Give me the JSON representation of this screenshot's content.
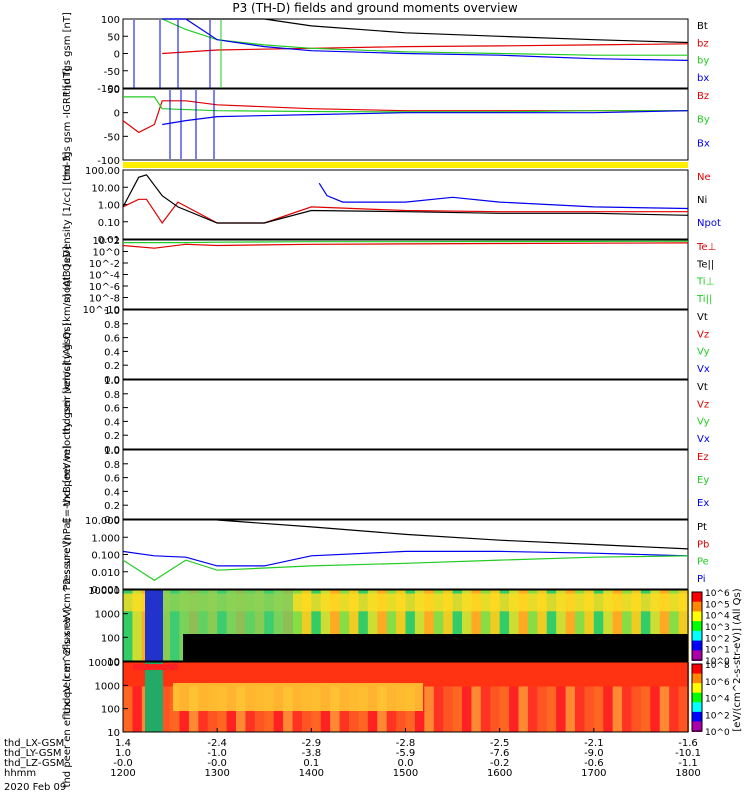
{
  "title": "P3 (TH-D) fields and ground moments overview",
  "colors": {
    "black": "#000000",
    "red": "#e00000",
    "green": "#22cc22",
    "blue": "#0000ee",
    "yellow": "#ffee00"
  },
  "chart_data": [
    {
      "type": "line",
      "ylabel": "thd fgs gsm [nT]",
      "yticks": [
        "100",
        "50",
        "0",
        "-50",
        "-100"
      ],
      "legend": [
        {
          "label": "Bt",
          "color": "black"
        },
        {
          "label": "bz",
          "color": "red"
        },
        {
          "label": "by",
          "color": "green"
        },
        {
          "label": "bx",
          "color": "blue"
        }
      ],
      "series": [
        {
          "name": "Bt",
          "x": [
            1225,
            1240,
            1300,
            1330,
            1400,
            1500,
            1600,
            1700,
            1800
          ],
          "y": [
            100,
            100,
            100,
            100,
            80,
            60,
            50,
            40,
            32
          ]
        },
        {
          "name": "bz",
          "x": [
            1225,
            1300,
            1400,
            1500,
            1600,
            1700,
            1800
          ],
          "y": [
            0,
            10,
            15,
            20,
            22,
            25,
            28
          ]
        },
        {
          "name": "by",
          "x": [
            1225,
            1240,
            1300,
            1330,
            1400,
            1500,
            1600,
            1700,
            1800
          ],
          "y": [
            100,
            70,
            40,
            25,
            15,
            5,
            0,
            -5,
            -5
          ]
        },
        {
          "name": "bx",
          "x": [
            1225,
            1240,
            1300,
            1330,
            1400,
            1500,
            1600,
            1700,
            1800
          ],
          "y": [
            100,
            100,
            40,
            20,
            8,
            0,
            -5,
            -15,
            -20
          ]
        }
      ]
    },
    {
      "type": "line",
      "ylabel": "thd fgs gsm -IGRF [nT]",
      "yticks": [
        "50",
        "0",
        "-50",
        "-100"
      ],
      "legend": [
        {
          "label": "Bz",
          "color": "red"
        },
        {
          "label": "By",
          "color": "green"
        },
        {
          "label": "Bx",
          "color": "blue"
        }
      ],
      "series": [
        {
          "name": "Bz",
          "x": [
            1200,
            1210,
            1220,
            1225,
            1240,
            1300,
            1400,
            1500,
            1600,
            1700,
            1800
          ],
          "y": [
            -20,
            -50,
            -30,
            30,
            30,
            20,
            10,
            5,
            5,
            5,
            5
          ]
        },
        {
          "name": "By",
          "x": [
            1200,
            1220,
            1225,
            1300,
            1400,
            1500,
            1600,
            1700,
            1800
          ],
          "y": [
            40,
            40,
            10,
            5,
            3,
            2,
            2,
            5,
            5
          ]
        },
        {
          "name": "Bx",
          "x": [
            1225,
            1240,
            1300,
            1400,
            1500,
            1600,
            1700,
            1800
          ],
          "y": [
            -30,
            -20,
            -10,
            -5,
            0,
            0,
            0,
            5
          ]
        }
      ]
    },
    {
      "type": "line",
      "ylabel": "Density [1/cc] [cm-3]",
      "yscale": "log",
      "yticks": [
        "100.00",
        "10.00",
        "1.00",
        "0.10",
        "0.01"
      ],
      "legend": [
        {
          "label": "Ne",
          "color": "red"
        },
        {
          "label": "Ni",
          "color": "black"
        },
        {
          "label": "Npot",
          "color": "blue"
        }
      ],
      "series": [
        {
          "name": "Ne",
          "x": [
            1200,
            1210,
            1215,
            1225,
            1235,
            1300,
            1330,
            1400,
            1500,
            1600,
            1700,
            1800
          ],
          "y": [
            1,
            3,
            3,
            0.1,
            2,
            0.1,
            0.1,
            1,
            0.6,
            0.5,
            0.5,
            0.5
          ]
        },
        {
          "name": "Ni",
          "x": [
            1200,
            1210,
            1215,
            1225,
            1235,
            1300,
            1330,
            1400,
            1500,
            1600,
            1700,
            1800
          ],
          "y": [
            1,
            70,
            100,
            5,
            1,
            0.1,
            0.1,
            0.6,
            0.5,
            0.4,
            0.4,
            0.3
          ]
        },
        {
          "name": "Npot",
          "x": [
            1405,
            1410,
            1420,
            1500,
            1530,
            1600,
            1700,
            1800
          ],
          "y": [
            30,
            5,
            2,
            2,
            4,
            2,
            1,
            0.8
          ]
        }
      ]
    },
    {
      "type": "line",
      "ylabel": "moqt3 [eV]",
      "yscale": "log",
      "yticks": [
        "10^2",
        "10^0",
        "10^-2",
        "10^-4",
        "10^-6",
        "10^-8",
        "10^-10"
      ],
      "legend": [
        {
          "label": "Te⊥",
          "color": "red"
        },
        {
          "label": "Te||",
          "color": "black"
        },
        {
          "label": "Ti⊥",
          "color": "green"
        },
        {
          "label": "Ti||",
          "color": "green"
        }
      ],
      "series": [
        {
          "name": "Te⊥",
          "x": [
            1200,
            1220,
            1240,
            1300,
            1400,
            1500,
            1600,
            1700,
            1800
          ],
          "y": [
            30,
            10,
            50,
            30,
            50,
            60,
            70,
            80,
            90
          ]
        },
        {
          "name": "Ti⊥",
          "x": [
            1200,
            1220,
            1240,
            1300,
            1400,
            1500,
            1600,
            1700,
            1800
          ],
          "y": [
            100,
            100,
            100,
            120,
            150,
            150,
            160,
            170,
            180
          ]
        }
      ]
    },
    {
      "type": "line",
      "ylabel": "thd peir velocity gsm [km/s] (All Qs)",
      "yticks": [
        "1.0",
        "0.8",
        "0.6",
        "0.4",
        "0.2",
        "0.0"
      ],
      "legend": [
        {
          "label": "Vt",
          "color": "black"
        },
        {
          "label": "Vz",
          "color": "red"
        },
        {
          "label": "Vy",
          "color": "green"
        },
        {
          "label": "Vx",
          "color": "blue"
        }
      ],
      "series": []
    },
    {
      "type": "line",
      "ylabel": "thd peer velocity gsm [km/s] (All Qs)",
      "yticks": [
        "1.0",
        "0.8",
        "0.6",
        "0.4",
        "0.2",
        "0.0"
      ],
      "legend": [
        {
          "label": "Vt",
          "color": "black"
        },
        {
          "label": "Vz",
          "color": "red"
        },
        {
          "label": "Vy",
          "color": "green"
        },
        {
          "label": "Vx",
          "color": "blue"
        }
      ],
      "series": []
    },
    {
      "type": "line",
      "ylabel": "E=-VxB [mV/m]",
      "yticks": [
        "1.0",
        "0.8",
        "0.6",
        "0.4",
        "0.2",
        "0.0"
      ],
      "legend": [
        {
          "label": "Ez",
          "color": "red"
        },
        {
          "label": "Ey",
          "color": "green"
        },
        {
          "label": "Ex",
          "color": "blue"
        }
      ],
      "series": []
    },
    {
      "type": "line",
      "ylabel": "Pressure [nPa]",
      "yscale": "log",
      "yticks": [
        "10.000",
        "1.000",
        "0.100",
        "0.010",
        "0.001"
      ],
      "legend": [
        {
          "label": "Pt",
          "color": "black"
        },
        {
          "label": "Pb",
          "color": "red"
        },
        {
          "label": "Pe",
          "color": "green"
        },
        {
          "label": "Pi",
          "color": "blue"
        }
      ],
      "series": [
        {
          "name": "Pt",
          "x": [
            1300,
            1400,
            1500,
            1600,
            1700,
            1800
          ],
          "y": [
            30,
            10,
            3,
            1.2,
            0.6,
            0.3
          ]
        },
        {
          "name": "Pi",
          "x": [
            1200,
            1220,
            1240,
            1300,
            1330,
            1400,
            1500,
            1600,
            1700,
            1800
          ],
          "y": [
            0.2,
            0.1,
            0.08,
            0.02,
            0.02,
            0.1,
            0.2,
            0.2,
            0.15,
            0.1
          ]
        },
        {
          "name": "Pe",
          "x": [
            1200,
            1220,
            1240,
            1300,
            1400,
            1500,
            1600,
            1700,
            1800
          ],
          "y": [
            0.05,
            0.002,
            0.05,
            0.01,
            0.02,
            0.03,
            0.05,
            0.08,
            0.1
          ]
        }
      ]
    },
    {
      "type": "heatmap",
      "ylabel": "thd peir en eflux eV (cm^2-s-sr-eV)",
      "yticks": [
        "10000",
        "1000",
        "100",
        "10"
      ],
      "colorbar": [
        "10^6",
        "10^5",
        "10^4",
        "10^3",
        "10^2",
        "10^1",
        "10^0"
      ]
    },
    {
      "type": "heatmap",
      "ylabel": "thd peer en eflux eV (cm^2-s-sr-eV)",
      "yticks": [
        "10000",
        "1000",
        "100",
        "10"
      ],
      "colorbar": [
        "10^8",
        "10^6",
        "10^4",
        "10^2",
        "10^0"
      ]
    }
  ],
  "colorbar_label": "[eV/(cm^2-s-str-eV)] (All Qs)",
  "xaxis": {
    "rows": [
      {
        "label": "thd_LX-GSM",
        "values": [
          "1.4",
          "-2.4",
          "-2.9",
          "-2.8",
          "-2.5",
          "-2.1",
          "-1.6"
        ]
      },
      {
        "label": "thd_LY-GSM",
        "values": [
          "1.0",
          "-1.0",
          "-3.8",
          "-5.9",
          "-7.6",
          "-9.0",
          "-10.1"
        ]
      },
      {
        "label": "thd_LZ-GSM",
        "values": [
          "-0.0",
          "-0.0",
          "0.1",
          "0.0",
          "-0.2",
          "-0.6",
          "-1.1"
        ]
      },
      {
        "label": "hhmm",
        "values": [
          "1200",
          "1300",
          "1400",
          "1500",
          "1600",
          "1700",
          "1800"
        ]
      }
    ],
    "date": "2020 Feb 09"
  }
}
